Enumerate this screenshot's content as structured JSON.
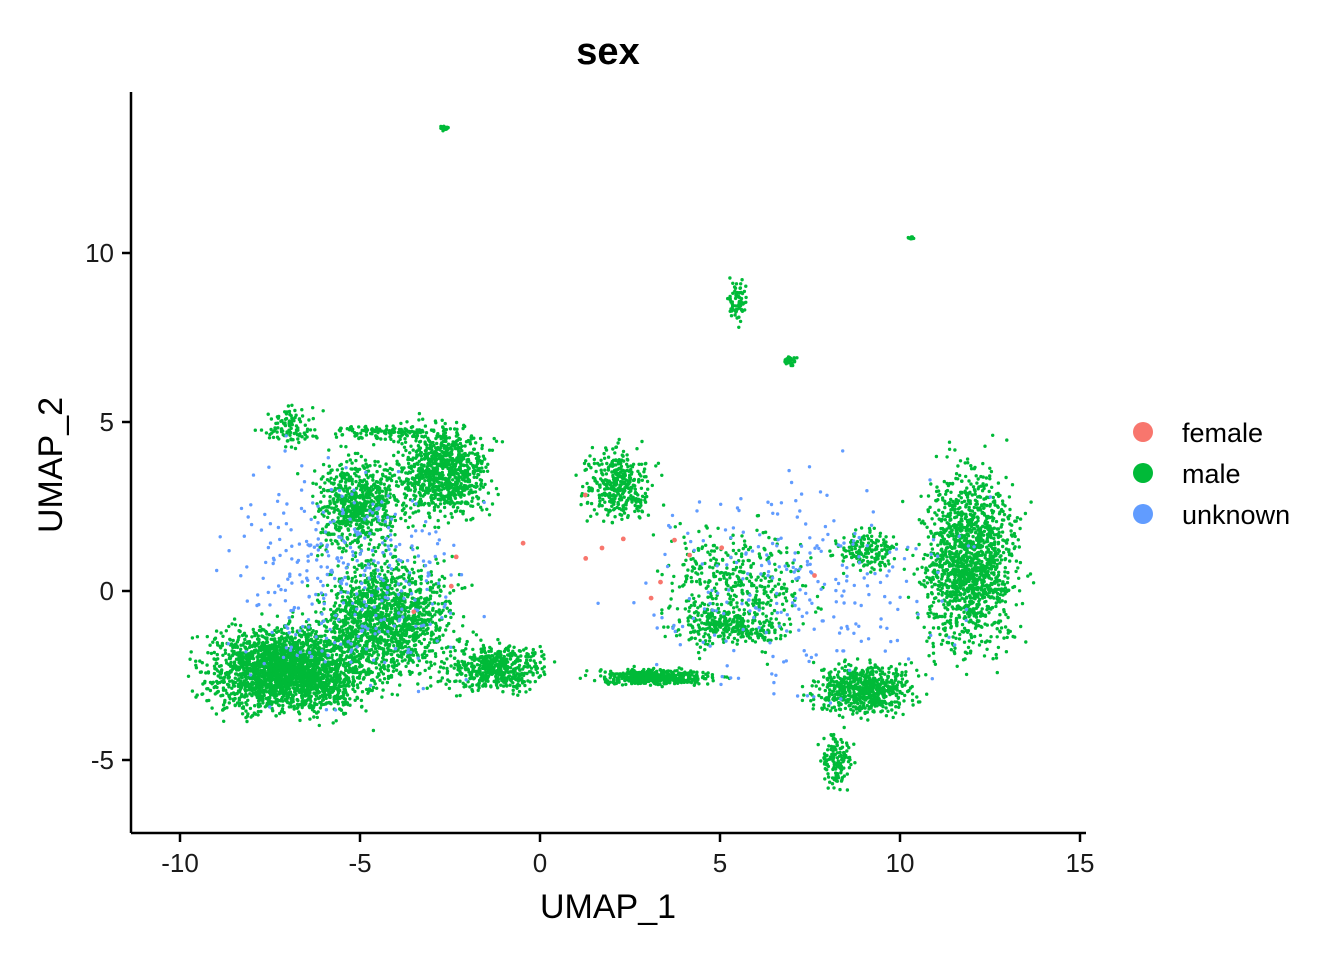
{
  "chart_data": {
    "type": "scatter",
    "title": "sex",
    "xlabel": "UMAP_1",
    "ylabel": "UMAP_2",
    "xlim": [
      -11.5,
      15.2
    ],
    "ylim": [
      -7.2,
      14.8
    ],
    "x_ticks": [
      -10,
      -5,
      0,
      5,
      10,
      15
    ],
    "x_tick_labels": [
      "-10",
      "-5",
      "0",
      "5",
      "10",
      "15"
    ],
    "y_ticks": [
      -5,
      0,
      5,
      10
    ],
    "y_tick_labels": [
      "-5",
      "0",
      "5",
      "10"
    ],
    "grid": false,
    "legend_position": "right",
    "series": [
      {
        "name": "female",
        "color": "#F8766D"
      },
      {
        "name": "male",
        "color": "#00BA38"
      },
      {
        "name": "unknown",
        "color": "#619CFF"
      }
    ],
    "regions": [
      {
        "series": "male",
        "x": [
          -10.2,
          -3.8
        ],
        "y": [
          -4.2,
          -0.5
        ],
        "count": 2400
      },
      {
        "series": "male",
        "x": [
          -7.0,
          -1.5
        ],
        "y": [
          -3.5,
          1.8
        ],
        "count": 1400
      },
      {
        "series": "male",
        "x": [
          -6.8,
          -3.2
        ],
        "y": [
          0.5,
          4.6
        ],
        "count": 700
      },
      {
        "series": "male",
        "x": [
          -4.5,
          -0.8
        ],
        "y": [
          1.6,
          5.5
        ],
        "count": 900
      },
      {
        "series": "male",
        "x": [
          -8.1,
          -5.8
        ],
        "y": [
          4.0,
          5.7
        ],
        "count": 110
      },
      {
        "series": "male",
        "x": [
          -6.6,
          -2.0
        ],
        "y": [
          4.4,
          5.0
        ],
        "count": 120
      },
      {
        "series": "male",
        "x": [
          -3.2,
          0.8
        ],
        "y": [
          -3.3,
          -1.2
        ],
        "count": 500
      },
      {
        "series": "male",
        "x": [
          0.8,
          5.5
        ],
        "y": [
          -2.9,
          -2.2
        ],
        "count": 500
      },
      {
        "series": "male",
        "x": [
          0.8,
          3.5
        ],
        "y": [
          1.6,
          4.7
        ],
        "count": 380
      },
      {
        "series": "male",
        "x": [
          2.5,
          8.5
        ],
        "y": [
          -2.5,
          3.0
        ],
        "count": 400
      },
      {
        "series": "male",
        "x": [
          3.0,
          7.5
        ],
        "y": [
          -1.8,
          -0.3
        ],
        "count": 260
      },
      {
        "series": "male",
        "x": [
          7.0,
          11.0
        ],
        "y": [
          -4.0,
          -1.8
        ],
        "count": 650
      },
      {
        "series": "male",
        "x": [
          7.6,
          8.9
        ],
        "y": [
          -6.2,
          -3.8
        ],
        "count": 140
      },
      {
        "series": "male",
        "x": [
          7.8,
          10.5
        ],
        "y": [
          0.2,
          2.2
        ],
        "count": 160
      },
      {
        "series": "male",
        "x": [
          10.0,
          13.9
        ],
        "y": [
          -3.0,
          4.8
        ],
        "count": 1500
      },
      {
        "series": "male",
        "x": [
          -2.8,
          -2.5
        ],
        "y": [
          13.6,
          13.8
        ],
        "count": 25
      },
      {
        "series": "male",
        "x": [
          10.2,
          10.4
        ],
        "y": [
          10.4,
          10.5
        ],
        "count": 10
      },
      {
        "series": "male",
        "x": [
          5.1,
          5.9
        ],
        "y": [
          7.6,
          9.5
        ],
        "count": 70
      },
      {
        "series": "male",
        "x": [
          6.7,
          7.2
        ],
        "y": [
          6.6,
          7.0
        ],
        "count": 30
      },
      {
        "series": "unknown",
        "x": [
          -10.0,
          -0.5
        ],
        "y": [
          -4.2,
          5.2
        ],
        "count": 350
      },
      {
        "series": "unknown",
        "x": [
          0.5,
          13.8
        ],
        "y": [
          -4.5,
          4.8
        ],
        "count": 260
      },
      {
        "series": "female",
        "x": [
          -6.9,
          12.8
        ],
        "y": [
          -3.0,
          5.0
        ],
        "count": 14
      }
    ]
  }
}
